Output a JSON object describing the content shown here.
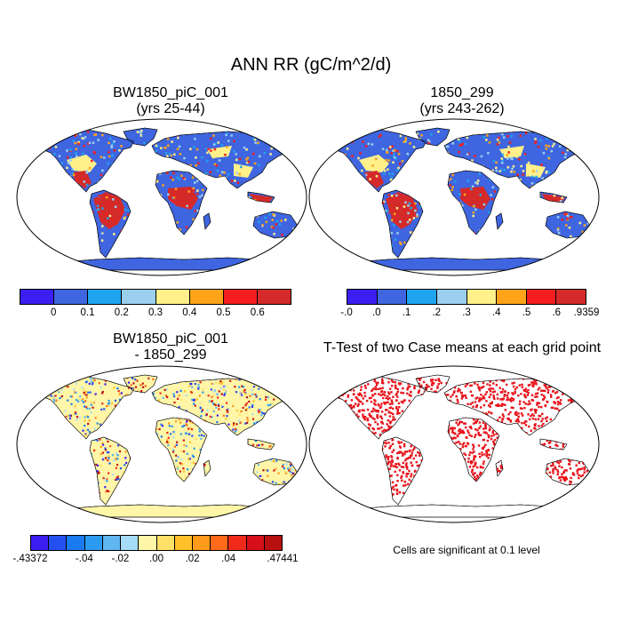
{
  "main_title": "ANN RR (gC/m^2/d)",
  "panels": {
    "top_left": {
      "title_line1": "BW1850_piC_001",
      "title_line2": "(yrs 25-44)"
    },
    "top_right": {
      "title_line1": "1850_299",
      "title_line2": "(yrs 243-262)"
    },
    "bottom_left": {
      "title_line1": "BW1850_piC_001",
      "title_line2": "- 1850_299"
    },
    "bottom_right": {
      "title": "T-Test of two Case means at each grid point"
    }
  },
  "colorbars": {
    "case1": {
      "colors": [
        "#3c1ff0",
        "#3f66e0",
        "#1fa5f0",
        "#9bcfee",
        "#fff08a",
        "#ffa31a",
        "#f41e1e",
        "#d42a2a"
      ],
      "labels": [
        "0",
        "0.1",
        "0.2",
        "0.3",
        "0.4",
        "0.5",
        "0.6"
      ]
    },
    "case2": {
      "colors": [
        "#3c1ff0",
        "#3f66e0",
        "#1fa5f0",
        "#9bcfee",
        "#fff08a",
        "#ffa31a",
        "#f41e1e",
        "#d42a2a"
      ],
      "labels": [
        "-.0",
        ".0",
        ".1",
        ".2",
        ".3",
        ".4",
        ".5",
        ".6",
        ".9359"
      ]
    },
    "diff": {
      "colors": [
        "#3c1ff0",
        "#2550f0",
        "#1a7af0",
        "#2a9bf0",
        "#5fb6f0",
        "#a6dcf7",
        "#fff6a8",
        "#ffe066",
        "#ffc02a",
        "#ff9a1a",
        "#ff6a1a",
        "#f02a1a",
        "#d6101a",
        "#b81010"
      ],
      "labels": [
        "-.43372",
        "-.04",
        "-.02",
        ".00",
        ".02",
        ".04",
        ".47441"
      ]
    }
  },
  "significance_note": "Cells are significant at 0.1 level",
  "colors": {
    "land_case": "#3f66e0",
    "land_diff": "#fff6a8",
    "signif": "#e8121a",
    "ocean": "#ffffff"
  }
}
